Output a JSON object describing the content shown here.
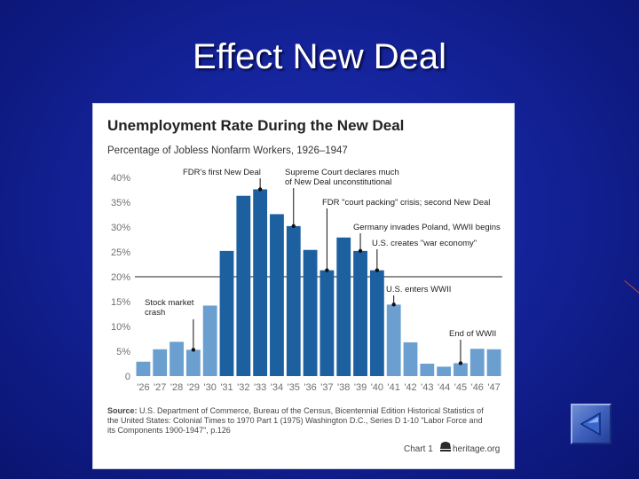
{
  "slide": {
    "title": "Effect New Deal"
  },
  "chart_data": {
    "type": "bar",
    "title": "Unemployment Rate During the New Deal",
    "subtitle": "Percentage of Jobless Nonfarm Workers, 1926–1947",
    "categories": [
      "'26",
      "'27",
      "'28",
      "'29",
      "'30",
      "'31",
      "'32",
      "'33",
      "'34",
      "'35",
      "'36",
      "'37",
      "'38",
      "'39",
      "'40",
      "'41",
      "'42",
      "'43",
      "'44",
      "'45",
      "'46",
      "'47"
    ],
    "values": [
      2.9,
      5.4,
      6.9,
      5.3,
      14.2,
      25.2,
      36.3,
      37.6,
      32.6,
      30.2,
      25.4,
      21.3,
      27.9,
      25.2,
      21.3,
      14.4,
      6.8,
      2.5,
      1.9,
      2.6,
      5.5,
      5.4
    ],
    "ylim": [
      0,
      40
    ],
    "yticks": [
      {
        "value": 0,
        "label": "0"
      },
      {
        "value": 5,
        "label": "5%"
      },
      {
        "value": 10,
        "label": "10%"
      },
      {
        "value": 15,
        "label": "15%"
      },
      {
        "value": 20,
        "label": "20%"
      },
      {
        "value": 25,
        "label": "25%"
      },
      {
        "value": 30,
        "label": "30%"
      },
      {
        "value": 35,
        "label": "35%"
      },
      {
        "value": 40,
        "label": "40%"
      }
    ],
    "reference_line": 20,
    "colors": {
      "bar_light": "#6a9fd0",
      "bar_dark": "#1d60a0",
      "axis_text": "#707070",
      "title_text": "#222222"
    },
    "dark_bar_indices": [
      5,
      6,
      7,
      8,
      9,
      10,
      11,
      12,
      13,
      14
    ],
    "annotations": [
      {
        "lines": [
          "Stock market",
          "crash"
        ],
        "bar": 3
      },
      {
        "lines": [
          "FDR's first New Deal"
        ],
        "bar": 7
      },
      {
        "lines": [
          "Supreme Court declares much",
          "of New Deal unconstitutional"
        ],
        "bar": 9
      },
      {
        "lines": [
          "FDR \"court packing\" crisis; second New Deal"
        ],
        "bar": 11
      },
      {
        "lines": [
          "Germany invades Poland, WWII begins"
        ],
        "bar": 13
      },
      {
        "lines": [
          "U.S. creates \"war economy\""
        ],
        "bar": 14
      },
      {
        "lines": [
          "U.S. enters WWII"
        ],
        "bar": 15
      },
      {
        "lines": [
          "End of WWII"
        ],
        "bar": 19
      }
    ],
    "source": {
      "label": "Source:",
      "lines": [
        "U.S. Department of Commerce, Bureau of the Census, Bicentennial Edition Historical Statistics of",
        "the United States: Colonial Times to 1970 Part 1 (1975) Washington D.C., Series D 1-10 \"Labor Force and",
        "its Components 1900-1947\", p.126"
      ]
    },
    "footer": {
      "chart_label": "Chart 1",
      "org": "heritage.org"
    }
  },
  "nav": {
    "back_icon": "back-arrow-icon"
  }
}
